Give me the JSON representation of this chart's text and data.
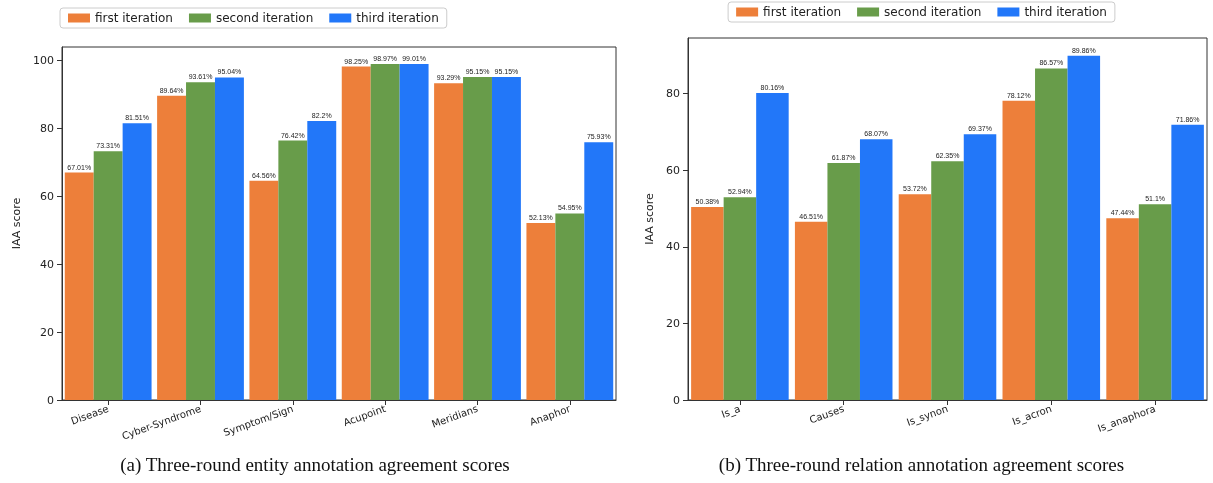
{
  "chart_data": [
    {
      "type": "bar",
      "title": "(a) Three-round entity annotation agreement scores",
      "ylabel": "IAA score",
      "categories": [
        "Disease",
        "Cyber-Syndrome",
        "Symptom/Sign",
        "Acupoint",
        "Meridians",
        "Anaphor"
      ],
      "series": [
        {
          "name": "first iteration",
          "color": "#ed7f3a",
          "values": [
            67.01,
            89.64,
            64.56,
            98.25,
            93.29,
            52.13
          ],
          "value_labels": [
            "67.01%",
            "89.64%",
            "64.56%",
            "98.25%",
            "93.29%",
            "52.13%"
          ]
        },
        {
          "name": "second iteration",
          "color": "#689c4a",
          "values": [
            73.31,
            93.61,
            76.42,
            98.97,
            95.15,
            54.95
          ],
          "value_labels": [
            "73.31%",
            "93.61%",
            "76.42%",
            "98.97%",
            "95.15%",
            "54.95%"
          ]
        },
        {
          "name": "third iteration",
          "color": "#2277f9",
          "values": [
            81.51,
            95.04,
            82.2,
            99.01,
            95.15,
            75.93
          ],
          "value_labels": [
            "81.51%",
            "95.04%",
            "82.2%",
            "99.01%",
            "95.15%",
            "75.93%"
          ]
        }
      ],
      "ylim": [
        0,
        104
      ],
      "yticks": [
        0,
        20,
        40,
        60,
        80,
        100
      ],
      "grid": false,
      "legend": "top left"
    },
    {
      "type": "bar",
      "title": "(b) Three-round relation annotation agreement scores",
      "ylabel": "IAA score",
      "categories": [
        "Is_a",
        "Causes",
        "Is_synon",
        "Is_acron",
        "Is_anaphora"
      ],
      "series": [
        {
          "name": "first iteration",
          "color": "#ed7f3a",
          "values": [
            50.38,
            46.51,
            53.72,
            78.12,
            47.44
          ],
          "value_labels": [
            "50.38%",
            "46.51%",
            "53.72%",
            "78.12%",
            "47.44%"
          ]
        },
        {
          "name": "second iteration",
          "color": "#689c4a",
          "values": [
            52.94,
            61.87,
            62.35,
            86.57,
            51.1
          ],
          "value_labels": [
            "52.94%",
            "61.87%",
            "62.35%",
            "86.57%",
            "51.1%"
          ]
        },
        {
          "name": "third iteration",
          "color": "#2277f9",
          "values": [
            80.16,
            68.07,
            69.37,
            89.86,
            71.86
          ],
          "value_labels": [
            "80.16%",
            "68.07%",
            "69.37%",
            "89.86%",
            "71.86%"
          ]
        }
      ],
      "ylim": [
        0,
        94.5
      ],
      "yticks": [
        0,
        20,
        40,
        60,
        80
      ],
      "grid": false,
      "legend": "top"
    }
  ]
}
